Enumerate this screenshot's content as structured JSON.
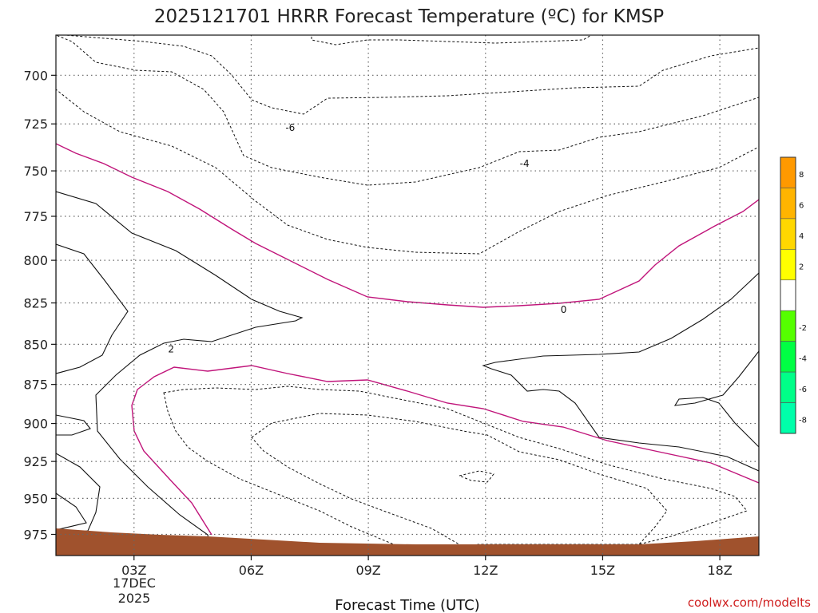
{
  "chart_data": {
    "type": "contour",
    "title": "2025121701 HRRR Forecast Temperature (ºC) for KMSP",
    "xlabel": "Forecast Time (UTC)",
    "ylabel": "",
    "x_ticks": [
      "03Z",
      "06Z",
      "09Z",
      "12Z",
      "15Z",
      "18Z"
    ],
    "x_date_lines": [
      "17DEC",
      "2025"
    ],
    "y_ticks": [
      700,
      725,
      750,
      775,
      800,
      825,
      850,
      875,
      900,
      925,
      950,
      975
    ],
    "y_scale": "log-pressure",
    "ylim": [
      680,
      990
    ],
    "xlim_hours": [
      1,
      19
    ],
    "grid": true,
    "contour_labels": [
      {
        "value": "-6",
        "hour": 7.0,
        "pressure": 727
      },
      {
        "value": "-4",
        "hour": 13.0,
        "pressure": 746
      },
      {
        "value": "0",
        "hour": 14.0,
        "pressure": 829
      },
      {
        "value": "2",
        "hour": 3.95,
        "pressure": 853
      }
    ],
    "colorbar": {
      "labels": [
        "8",
        "6",
        "4",
        "2",
        "-2",
        "-4",
        "-6",
        "-8"
      ],
      "bands": [
        {
          "from": 8,
          "to": 10,
          "color": "#ff9900"
        },
        {
          "from": 6,
          "to": 8,
          "color": "#ffb400"
        },
        {
          "from": 4,
          "to": 6,
          "color": "#ffd700"
        },
        {
          "from": 2,
          "to": 4,
          "color": "#ffff00"
        },
        {
          "from": -2,
          "to": 2,
          "color": "#ffffff"
        },
        {
          "from": -4,
          "to": -2,
          "color": "#55ff00"
        },
        {
          "from": -6,
          "to": -4,
          "color": "#00ff44"
        },
        {
          "from": -8,
          "to": -6,
          "color": "#00ff88"
        },
        {
          "from": -10,
          "to": -8,
          "color": "#00ffaa"
        }
      ]
    },
    "credit": "coolwx.com/modelts"
  },
  "colors": {
    "ground": "#a0522d",
    "zero_line": "#c0147a",
    "credit": "#d02020"
  }
}
